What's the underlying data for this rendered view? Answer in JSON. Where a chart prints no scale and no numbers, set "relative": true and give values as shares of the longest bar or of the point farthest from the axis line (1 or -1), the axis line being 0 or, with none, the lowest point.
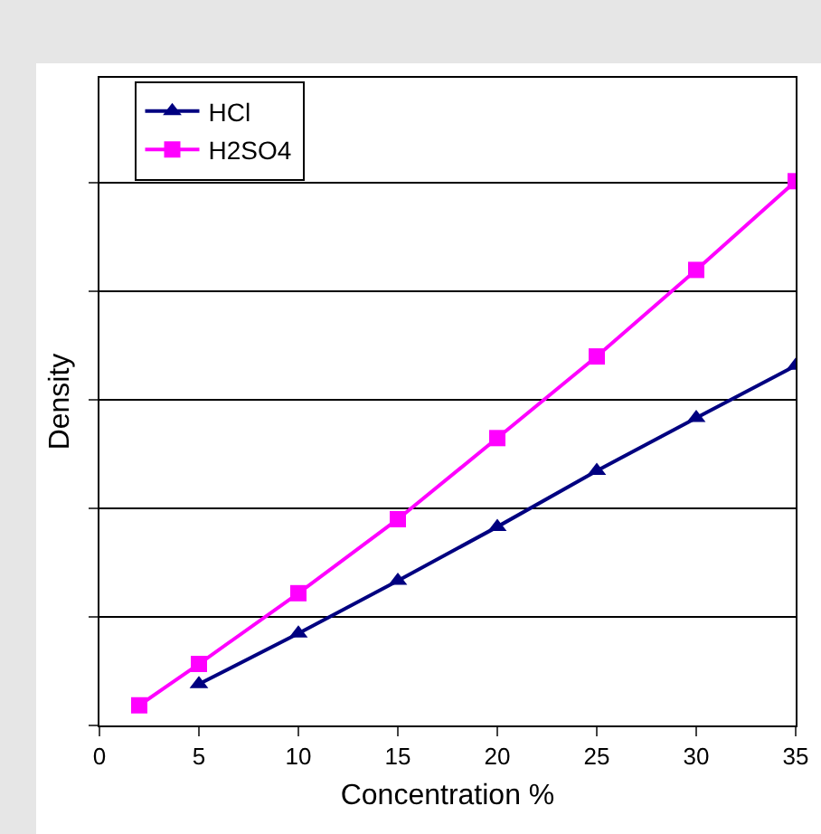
{
  "chart_data": {
    "type": "line",
    "xlabel": "Concentration %",
    "ylabel": "Density",
    "relative": true,
    "xlim": [
      0,
      35
    ],
    "xticks": [
      0,
      5,
      10,
      15,
      20,
      25,
      30,
      35
    ],
    "grid": "y",
    "legend": "top left",
    "line_style": "solid",
    "series": [
      {
        "name": "HCl",
        "color": "#000080",
        "marker": "triangle",
        "x": [
          5,
          10,
          15,
          20,
          25,
          30,
          35
        ],
        "values": [
          0.076,
          0.169,
          0.266,
          0.365,
          0.468,
          0.565,
          0.661
        ]
      },
      {
        "name": "H2SO4",
        "color": "#ff00ff",
        "marker": "square",
        "x": [
          2,
          5,
          10,
          15,
          20,
          25,
          30,
          35
        ],
        "values": [
          0.037,
          0.113,
          0.243,
          0.379,
          0.528,
          0.678,
          0.837,
          1
        ]
      }
    ]
  }
}
